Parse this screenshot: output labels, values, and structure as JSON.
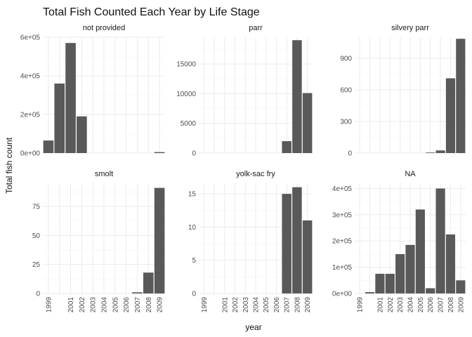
{
  "chart_data": {
    "type": "bar",
    "title": "Total Fish Counted Each Year by Life Stage",
    "xlabel": "year",
    "ylabel": "Total fish count",
    "grid": true,
    "facet_scales": "free_y",
    "x": [
      1999,
      2000,
      2001,
      2002,
      2003,
      2004,
      2005,
      2006,
      2007,
      2008,
      2009
    ],
    "x_tick_labels": [
      "1999",
      "2001",
      "2002",
      "2003",
      "2004",
      "2005",
      "2006",
      "2007",
      "2008",
      "2009"
    ],
    "bar_color": "#595959",
    "facets": [
      {
        "name": "not provided",
        "ylim": [
          0,
          600000
        ],
        "y_ticks": [
          0,
          200000,
          400000,
          600000
        ],
        "y_tick_labels": [
          "0e+00",
          "2e+05",
          "4e+05",
          "6e+05"
        ],
        "values": [
          65000,
          360000,
          570000,
          190000,
          null,
          null,
          null,
          null,
          null,
          null,
          5000
        ]
      },
      {
        "name": "parr",
        "ylim": [
          0,
          19500
        ],
        "y_ticks": [
          0,
          5000,
          10000,
          15000
        ],
        "y_tick_labels": [
          "0",
          "5000",
          "10000",
          "15000"
        ],
        "values": [
          null,
          null,
          null,
          null,
          null,
          null,
          null,
          null,
          2000,
          19000,
          10100
        ]
      },
      {
        "name": "silvery parr",
        "ylim": [
          0,
          1100
        ],
        "y_ticks": [
          0,
          300,
          600,
          900
        ],
        "y_tick_labels": [
          "0",
          "300",
          "600",
          "900"
        ],
        "values": [
          null,
          null,
          null,
          null,
          null,
          null,
          null,
          5,
          25,
          710,
          1085
        ]
      },
      {
        "name": "smolt",
        "ylim": [
          0,
          95
        ],
        "y_ticks": [
          0,
          25,
          50,
          75
        ],
        "y_tick_labels": [
          "0",
          "25",
          "50",
          "75"
        ],
        "values": [
          null,
          null,
          null,
          null,
          null,
          null,
          null,
          null,
          1,
          18,
          91
        ]
      },
      {
        "name": "yolk-sac fry",
        "ylim": [
          0,
          16.6
        ],
        "y_ticks": [
          0,
          5,
          10,
          15
        ],
        "y_tick_labels": [
          "0",
          "5",
          "10",
          "15"
        ],
        "values": [
          null,
          null,
          null,
          null,
          null,
          null,
          null,
          null,
          15,
          16,
          11
        ]
      },
      {
        "name": "NA",
        "ylim": [
          0,
          420000
        ],
        "y_ticks": [
          0,
          100000,
          200000,
          300000,
          400000
        ],
        "y_tick_labels": [
          "0e+00",
          "1e+05",
          "2e+05",
          "3e+05",
          "4e+05"
        ],
        "values": [
          null,
          5000,
          75000,
          75000,
          150000,
          185000,
          320000,
          20000,
          400000,
          225000,
          50000
        ]
      }
    ]
  }
}
